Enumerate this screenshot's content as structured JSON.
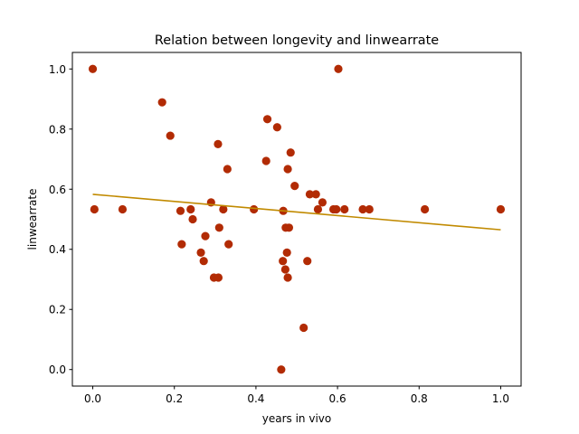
{
  "chart_data": {
    "type": "scatter",
    "title": "Relation between longevity and linwearrate",
    "xlabel": "years in vivo",
    "ylabel": "linwearrate",
    "xlim": [
      -0.05,
      1.05
    ],
    "ylim": [
      -0.055,
      1.055
    ],
    "xticks": [
      0.0,
      0.2,
      0.4,
      0.6,
      0.8,
      1.0
    ],
    "yticks": [
      0.0,
      0.2,
      0.4,
      0.6,
      0.8,
      1.0
    ],
    "xtick_labels": [
      "0.0",
      "0.2",
      "0.4",
      "0.6",
      "0.8",
      "1.0"
    ],
    "ytick_labels": [
      "0.0",
      "0.2",
      "0.4",
      "0.6",
      "0.8",
      "1.0"
    ],
    "grid": false,
    "series": [
      {
        "marker_color": "#b22b04",
        "points": [
          [
            0.0,
            1.0
          ],
          [
            0.004,
            0.533
          ],
          [
            0.073,
            0.533
          ],
          [
            0.17,
            0.889
          ],
          [
            0.19,
            0.778
          ],
          [
            0.215,
            0.528
          ],
          [
            0.218,
            0.417
          ],
          [
            0.24,
            0.533
          ],
          [
            0.245,
            0.5
          ],
          [
            0.265,
            0.389
          ],
          [
            0.272,
            0.361
          ],
          [
            0.276,
            0.444
          ],
          [
            0.29,
            0.556
          ],
          [
            0.297,
            0.306
          ],
          [
            0.308,
            0.306
          ],
          [
            0.307,
            0.75
          ],
          [
            0.31,
            0.472
          ],
          [
            0.32,
            0.533
          ],
          [
            0.33,
            0.667
          ],
          [
            0.333,
            0.417
          ],
          [
            0.395,
            0.533
          ],
          [
            0.425,
            0.694
          ],
          [
            0.428,
            0.833
          ],
          [
            0.452,
            0.806
          ],
          [
            0.462,
            0.0
          ],
          [
            0.466,
            0.361
          ],
          [
            0.467,
            0.528
          ],
          [
            0.472,
            0.333
          ],
          [
            0.473,
            0.472
          ],
          [
            0.476,
            0.389
          ],
          [
            0.478,
            0.667
          ],
          [
            0.478,
            0.306
          ],
          [
            0.481,
            0.472
          ],
          [
            0.485,
            0.722
          ],
          [
            0.495,
            0.611
          ],
          [
            0.517,
            0.139
          ],
          [
            0.526,
            0.361
          ],
          [
            0.532,
            0.583
          ],
          [
            0.547,
            0.583
          ],
          [
            0.552,
            0.533
          ],
          [
            0.563,
            0.556
          ],
          [
            0.59,
            0.533
          ],
          [
            0.597,
            0.533
          ],
          [
            0.602,
            1.0
          ],
          [
            0.617,
            0.533
          ],
          [
            0.662,
            0.533
          ],
          [
            0.678,
            0.533
          ],
          [
            0.814,
            0.533
          ],
          [
            1.0,
            0.533
          ]
        ]
      },
      {
        "kind": "line",
        "line_color": "#c18a00",
        "points": [
          [
            0.0,
            0.583
          ],
          [
            1.0,
            0.465
          ]
        ]
      }
    ]
  }
}
